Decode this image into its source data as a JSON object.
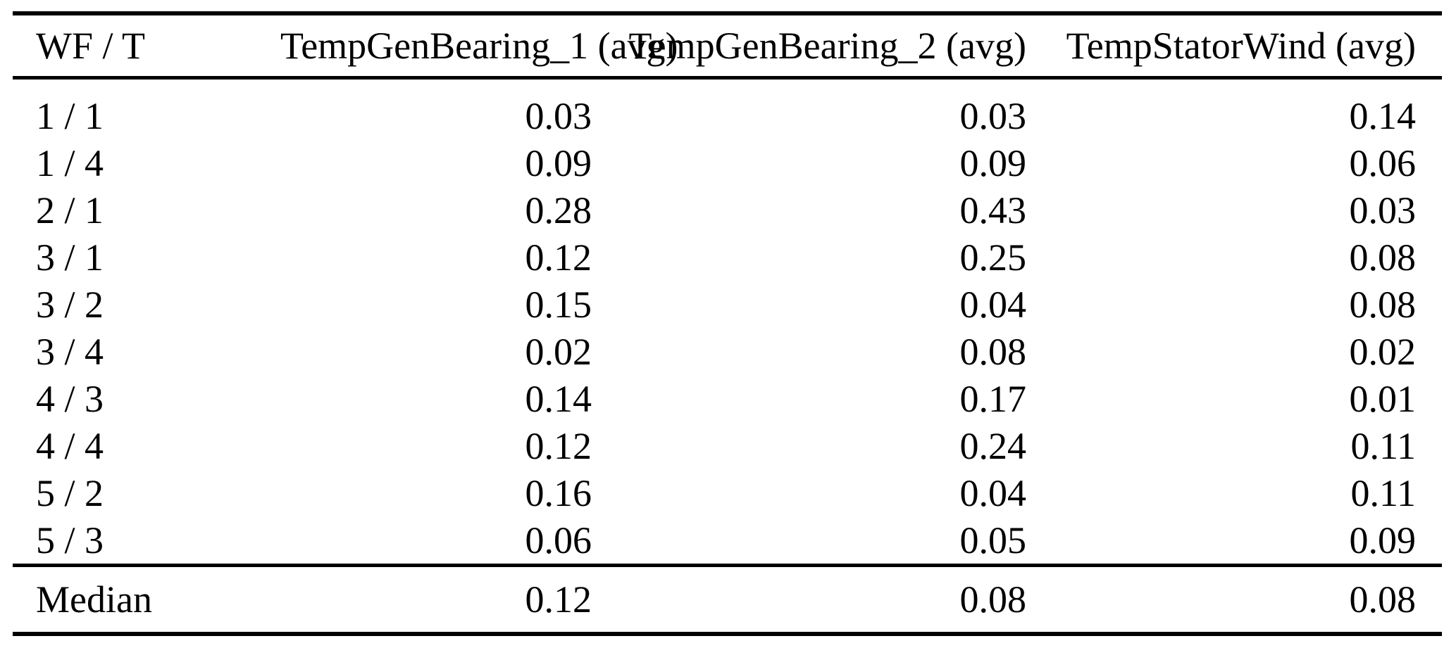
{
  "table": {
    "columns": [
      {
        "label": "WF / T",
        "align": "left"
      },
      {
        "label": "TempGenBearing_1 (avg)",
        "align": "right"
      },
      {
        "label": "TempGenBearing_2 (avg)",
        "align": "right"
      },
      {
        "label": "TempStatorWind (avg)",
        "align": "right"
      }
    ],
    "rows": [
      {
        "wf_t": "1 / 1",
        "values": [
          "0.03",
          "0.03",
          "0.14"
        ]
      },
      {
        "wf_t": "1 / 4",
        "values": [
          "0.09",
          "0.09",
          "0.06"
        ]
      },
      {
        "wf_t": "2 / 1",
        "values": [
          "0.28",
          "0.43",
          "0.03"
        ]
      },
      {
        "wf_t": "3 / 1",
        "values": [
          "0.12",
          "0.25",
          "0.08"
        ]
      },
      {
        "wf_t": "3 / 2",
        "values": [
          "0.15",
          "0.04",
          "0.08"
        ]
      },
      {
        "wf_t": "3 / 4",
        "values": [
          "0.02",
          "0.08",
          "0.02"
        ]
      },
      {
        "wf_t": "4 / 3",
        "values": [
          "0.14",
          "0.17",
          "0.01"
        ]
      },
      {
        "wf_t": "4 / 4",
        "values": [
          "0.12",
          "0.24",
          "0.11"
        ]
      },
      {
        "wf_t": "5 / 2",
        "values": [
          "0.16",
          "0.04",
          "0.11"
        ]
      },
      {
        "wf_t": "5 / 3",
        "values": [
          "0.06",
          "0.05",
          "0.09"
        ]
      }
    ],
    "summary": {
      "label": "Median",
      "values": [
        "0.12",
        "0.08",
        "0.08"
      ]
    },
    "colors": {
      "text": "#000000",
      "background": "#ffffff",
      "rule": "#000000"
    }
  }
}
